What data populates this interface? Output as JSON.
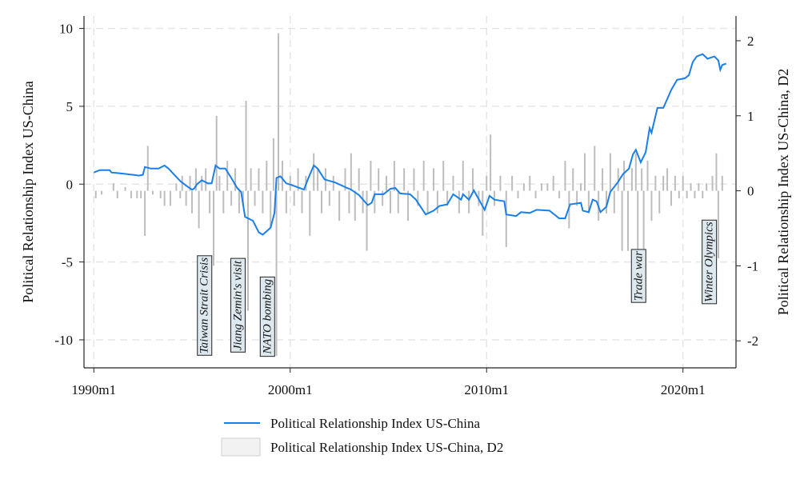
{
  "chart_data": {
    "type": "line",
    "xlabel": "",
    "ylabel": "Political Relationship Index US-China",
    "ylabel_right": "Political Relationship Index US-China, D2",
    "xlim": [
      1989.5,
      2022.7
    ],
    "ylim": [
      -11.8,
      10.8
    ],
    "ylim_right": [
      -2.36,
      2.33
    ],
    "grid": true,
    "legend_placement": "bottom",
    "x_ticks": [
      {
        "value": 1990,
        "label": "1990m1"
      },
      {
        "value": 2000,
        "label": "2000m1"
      },
      {
        "value": 2010,
        "label": "2010m1"
      },
      {
        "value": 2020,
        "label": "2020m1"
      }
    ],
    "y_ticks": [
      {
        "value": 10,
        "label": "10"
      },
      {
        "value": 5,
        "label": "5"
      },
      {
        "value": 0,
        "label": "0"
      },
      {
        "value": -5,
        "label": "-5"
      },
      {
        "value": -10,
        "label": "-10"
      }
    ],
    "y_ticks_right": [
      {
        "value": 2,
        "label": "2"
      },
      {
        "value": 1,
        "label": "1"
      },
      {
        "value": 0,
        "label": "0"
      },
      {
        "value": -1,
        "label": "-1"
      },
      {
        "value": -2,
        "label": "-2"
      }
    ],
    "series": [
      {
        "name": "Political Relationship Index US-China",
        "type": "line",
        "axis": "left",
        "color": "#1a7fe8",
        "x": [
          1990.0,
          1990.3,
          1990.8,
          1990.9,
          1991.3,
          1992.0,
          1992.3,
          1992.5,
          1992.6,
          1992.9,
          1993.3,
          1993.6,
          1993.8,
          1994.1,
          1994.4,
          1994.7,
          1995.0,
          1995.1,
          1995.25,
          1995.5,
          1995.8,
          1996.0,
          1996.2,
          1996.4,
          1996.7,
          1997.0,
          1997.3,
          1997.5,
          1997.7,
          1998.1,
          1998.4,
          1998.6,
          1999.0,
          1999.2,
          1999.3,
          1999.5,
          1999.8,
          2000.05,
          2000.7,
          2000.9,
          2001.2,
          2001.4,
          2001.75,
          2001.9,
          2002.3,
          2002.9,
          2003.1,
          2003.5,
          2003.95,
          2004.15,
          2004.3,
          2004.75,
          2005.1,
          2005.35,
          2005.6,
          2006.1,
          2006.4,
          2006.9,
          2007.3,
          2007.6,
          2008.0,
          2008.3,
          2008.7,
          2008.8,
          2009.1,
          2009.35,
          2009.9,
          2010.15,
          2010.4,
          2010.9,
          2011.0,
          2011.5,
          2011.75,
          2012.2,
          2012.55,
          2013.2,
          2013.7,
          2014.0,
          2014.25,
          2014.8,
          2014.9,
          2015.2,
          2015.4,
          2015.6,
          2015.8,
          2016.1,
          2016.3,
          2016.7,
          2016.95,
          2017.25,
          2017.45,
          2017.6,
          2017.85,
          2018.1,
          2018.3,
          2018.4,
          2018.7,
          2019.0,
          2019.4,
          2019.7,
          2020.1,
          2020.3,
          2020.5,
          2020.7,
          2021.0,
          2021.25,
          2021.6,
          2021.8,
          2021.9,
          2022.0,
          2022.2
        ],
        "values": [
          0.75,
          0.9,
          0.9,
          0.75,
          0.7,
          0.6,
          0.55,
          0.6,
          1.1,
          1.0,
          1.0,
          1.2,
          1.0,
          0.6,
          0.2,
          -0.1,
          -0.35,
          -0.3,
          0.0,
          0.25,
          0.05,
          0.05,
          1.2,
          1.0,
          1.0,
          0.4,
          -0.25,
          -0.5,
          -2.1,
          -2.35,
          -3.1,
          -3.25,
          -2.8,
          -1.85,
          0.4,
          0.5,
          0.05,
          -0.05,
          -0.35,
          0.3,
          1.2,
          1.0,
          0.3,
          0.25,
          0.1,
          -0.25,
          -0.35,
          -0.7,
          -1.35,
          -1.2,
          -0.65,
          -0.65,
          -0.3,
          -0.25,
          -0.6,
          -0.65,
          -1.0,
          -1.95,
          -1.7,
          -1.4,
          -1.3,
          -0.65,
          -1.0,
          -0.65,
          -1.0,
          -0.4,
          -1.65,
          -0.75,
          -1.0,
          -1.1,
          -1.95,
          -2.05,
          -1.8,
          -1.85,
          -1.65,
          -1.7,
          -2.2,
          -2.2,
          -1.3,
          -1.2,
          -1.7,
          -1.8,
          -1.0,
          -1.1,
          -1.8,
          -1.45,
          -0.5,
          0.15,
          0.65,
          1.0,
          1.9,
          2.2,
          1.4,
          2.05,
          3.6,
          3.3,
          4.9,
          4.9,
          6.05,
          6.7,
          6.8,
          7.0,
          7.85,
          8.2,
          8.35,
          8.05,
          8.2,
          7.95,
          7.35,
          7.65,
          7.75
        ]
      },
      {
        "name": "Political Relationship Index US-China, D2",
        "type": "bar",
        "axis": "right",
        "color": "#bdbdbd",
        "x": [
          1990.1,
          1990.4,
          1991.0,
          1991.2,
          1991.6,
          1991.9,
          1992.2,
          1992.4,
          1992.6,
          1992.75,
          1993.0,
          1993.4,
          1993.6,
          1993.9,
          1994.2,
          1994.4,
          1994.5,
          1994.7,
          1994.9,
          1995.0,
          1995.2,
          1995.35,
          1995.5,
          1995.7,
          1995.9,
          1996.1,
          1996.25,
          1996.4,
          1996.6,
          1996.8,
          1997.0,
          1997.2,
          1997.4,
          1997.6,
          1997.75,
          1997.85,
          1998.0,
          1998.2,
          1998.4,
          1998.6,
          1998.8,
          1999.0,
          1999.15,
          1999.3,
          1999.4,
          1999.6,
          1999.8,
          2000.0,
          2000.2,
          2000.4,
          2000.6,
          2000.8,
          2001.0,
          2001.2,
          2001.4,
          2001.6,
          2001.8,
          2002.0,
          2002.2,
          2002.5,
          2002.8,
          2003.0,
          2003.1,
          2003.3,
          2003.5,
          2003.7,
          2003.9,
          2004.1,
          2004.3,
          2004.5,
          2004.7,
          2004.9,
          2005.1,
          2005.3,
          2005.5,
          2005.8,
          2006.0,
          2006.3,
          2006.5,
          2006.8,
          2007.0,
          2007.3,
          2007.5,
          2007.8,
          2008.0,
          2008.3,
          2008.6,
          2008.8,
          2009.1,
          2009.3,
          2009.6,
          2009.8,
          2010.0,
          2010.2,
          2010.4,
          2010.7,
          2011.0,
          2011.3,
          2011.6,
          2011.9,
          2012.2,
          2012.5,
          2012.8,
          2013.1,
          2013.4,
          2013.7,
          2014.0,
          2014.2,
          2014.4,
          2014.6,
          2014.8,
          2015.0,
          2015.2,
          2015.5,
          2015.7,
          2015.9,
          2016.1,
          2016.3,
          2016.5,
          2016.7,
          2016.9,
          2017.0,
          2017.2,
          2017.4,
          2017.6,
          2017.7,
          2017.9,
          2018.0,
          2018.2,
          2018.4,
          2018.6,
          2018.8,
          2019.0,
          2019.2,
          2019.4,
          2019.6,
          2019.8,
          2020.0,
          2020.2,
          2020.4,
          2020.6,
          2020.8,
          2021.0,
          2021.2,
          2021.5,
          2021.7,
          2021.8,
          2022.0
        ],
        "values": [
          -0.1,
          -0.05,
          0.1,
          -0.1,
          0.05,
          -0.1,
          -0.1,
          -0.1,
          -0.6,
          0.6,
          -0.05,
          -0.1,
          -0.2,
          -0.2,
          0.1,
          -0.1,
          0.2,
          -0.2,
          0.2,
          -0.3,
          0.3,
          -0.5,
          0.2,
          0.3,
          -0.3,
          -1.0,
          1.0,
          0.2,
          -0.3,
          0.4,
          -0.2,
          0.3,
          -0.3,
          -0.2,
          1.2,
          -1.6,
          0.3,
          -0.2,
          0.3,
          -0.3,
          0.4,
          -0.5,
          0.7,
          -2.2,
          2.1,
          0.4,
          -0.3,
          0.2,
          -0.2,
          0.3,
          -0.3,
          0.2,
          -0.6,
          0.5,
          0.3,
          -0.3,
          0.3,
          -0.2,
          0.2,
          -0.4,
          0.3,
          -0.3,
          0.5,
          -0.4,
          0.3,
          -0.3,
          -0.8,
          0.4,
          -0.3,
          0.3,
          -0.2,
          0.2,
          -0.3,
          0.4,
          -0.3,
          0.3,
          -0.4,
          0.3,
          -0.2,
          0.4,
          -0.3,
          0.3,
          -0.3,
          0.4,
          -0.2,
          0.2,
          -0.3,
          0.4,
          -0.3,
          0.3,
          -0.2,
          -0.6,
          0.2,
          0.75,
          -0.2,
          0.2,
          -0.75,
          0.2,
          -0.1,
          0.1,
          0.2,
          -0.1,
          0.1,
          0.1,
          0.2,
          -0.1,
          0.4,
          -0.5,
          0.3,
          -0.2,
          0.1,
          0.5,
          -0.3,
          0.6,
          -0.4,
          0.3,
          -0.3,
          0.5,
          -0.3,
          0.3,
          -0.8,
          0.4,
          -0.8,
          0.3,
          0.5,
          -0.8,
          0.3,
          -0.9,
          0.4,
          -0.4,
          0.2,
          -0.3,
          0.2,
          0.3,
          -0.2,
          0.2,
          -0.1,
          0.2,
          -0.1,
          0.1,
          -0.1,
          0.1,
          -0.1,
          0.1,
          0.2,
          0.5,
          -0.9,
          0.2
        ]
      }
    ],
    "annotations": [
      {
        "text": "Taiwan Strait Crisis",
        "x": 1995.6,
        "y": -7.8
      },
      {
        "text": "Jiang Zemin's visit",
        "x": 1997.3,
        "y": -7.8
      },
      {
        "text": "NATO bombing",
        "x": 1998.8,
        "y": -8.5
      },
      {
        "text": "Trade war",
        "x": 2017.7,
        "y": -5.9
      },
      {
        "text": "Winter Olympics",
        "x": 2021.3,
        "y": -5.0
      }
    ],
    "legend": [
      {
        "label": "Political Relationship Index US-China",
        "swatch": "line"
      },
      {
        "label": "Political Relationship Index US-China, D2",
        "swatch": "box"
      }
    ]
  }
}
